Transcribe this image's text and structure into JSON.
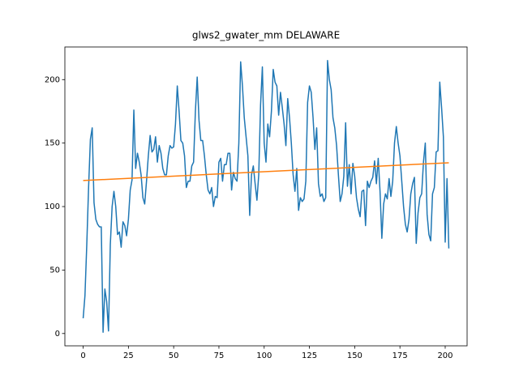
{
  "chart_data": {
    "type": "line",
    "title": "glws2_gwater_mm DELAWARE",
    "xlim": [
      -10.1,
      212.1
    ],
    "ylim": [
      -9.7,
      225.7
    ],
    "xticks": [
      0,
      25,
      50,
      75,
      100,
      125,
      150,
      175,
      200
    ],
    "yticks": [
      0,
      50,
      100,
      150,
      200
    ],
    "series": [
      {
        "color": "#1f77b4",
        "x": [
          0,
          1,
          2,
          3,
          4,
          5,
          6,
          7,
          8,
          9,
          10,
          11,
          12,
          13,
          14,
          15,
          16,
          17,
          18,
          19,
          20,
          21,
          22,
          23,
          24,
          25,
          26,
          27,
          28,
          29,
          30,
          31,
          32,
          33,
          34,
          35,
          36,
          37,
          38,
          39,
          40,
          41,
          42,
          43,
          44,
          45,
          46,
          47,
          48,
          49,
          50,
          51,
          52,
          53,
          54,
          55,
          56,
          57,
          58,
          59,
          60,
          61,
          62,
          63,
          64,
          65,
          66,
          67,
          68,
          69,
          70,
          71,
          72,
          73,
          74,
          75,
          76,
          77,
          78,
          79,
          80,
          81,
          82,
          83,
          84,
          85,
          86,
          87,
          88,
          89,
          90,
          91,
          92,
          93,
          94,
          95,
          96,
          97,
          98,
          99,
          100,
          101,
          102,
          103,
          104,
          105,
          106,
          107,
          108,
          109,
          110,
          111,
          112,
          113,
          114,
          115,
          116,
          117,
          118,
          119,
          120,
          121,
          122,
          123,
          124,
          125,
          126,
          127,
          128,
          129,
          130,
          131,
          132,
          133,
          134,
          135,
          136,
          137,
          138,
          139,
          140,
          141,
          142,
          143,
          144,
          145,
          146,
          147,
          148,
          149,
          150,
          151,
          152,
          153,
          154,
          155,
          156,
          157,
          158,
          159,
          160,
          161,
          162,
          163,
          164,
          165,
          166,
          167,
          168,
          169,
          170,
          171,
          172,
          173,
          174,
          175,
          176,
          177,
          178,
          179,
          180,
          181,
          182,
          183,
          184,
          185,
          186,
          187,
          188,
          189,
          190,
          191,
          192,
          193,
          194,
          195,
          196,
          197,
          198,
          199,
          200,
          201,
          202
        ],
        "values": [
          12,
          30,
          70,
          115,
          153,
          162,
          103,
          90,
          86,
          84,
          84,
          1,
          35,
          25,
          2,
          70,
          100,
          112,
          100,
          78,
          80,
          68,
          88,
          85,
          77,
          90,
          113,
          121,
          176,
          130,
          142,
          135,
          125,
          107,
          102,
          120,
          140,
          156,
          143,
          145,
          155,
          135,
          148,
          142,
          130,
          125,
          125,
          140,
          148,
          146,
          147,
          165,
          195,
          175,
          152,
          150,
          140,
          115,
          120,
          120,
          132,
          135,
          175,
          202,
          168,
          152,
          152,
          140,
          125,
          113,
          110,
          115,
          100,
          108,
          107,
          135,
          138,
          120,
          133,
          133,
          142,
          142,
          113,
          127,
          122,
          120,
          150,
          214,
          195,
          170,
          155,
          140,
          93,
          125,
          132,
          118,
          105,
          125,
          180,
          210,
          150,
          135,
          165,
          155,
          175,
          208,
          198,
          195,
          172,
          190,
          178,
          165,
          148,
          185,
          170,
          150,
          125,
          112,
          130,
          97,
          107,
          104,
          106,
          120,
          182,
          195,
          190,
          170,
          145,
          162,
          118,
          108,
          110,
          104,
          107,
          215,
          200,
          192,
          170,
          162,
          148,
          125,
          104,
          110,
          124,
          166,
          116,
          133,
          110,
          134,
          124,
          107,
          98,
          92,
          112,
          113,
          85,
          120,
          115,
          120,
          123,
          136,
          118,
          138,
          112,
          75,
          102,
          110,
          106,
          122,
          108,
          120,
          150,
          163,
          150,
          140,
          120,
          100,
          86,
          80,
          90,
          110,
          118,
          123,
          71,
          95,
          107,
          110,
          135,
          150,
          94,
          78,
          73,
          110,
          115,
          143,
          144,
          198,
          178,
          155,
          72,
          122,
          67
        ]
      },
      {
        "color": "#ff7f0e",
        "x": [
          0,
          202
        ],
        "values": [
          120.5,
          134.5
        ]
      }
    ]
  }
}
